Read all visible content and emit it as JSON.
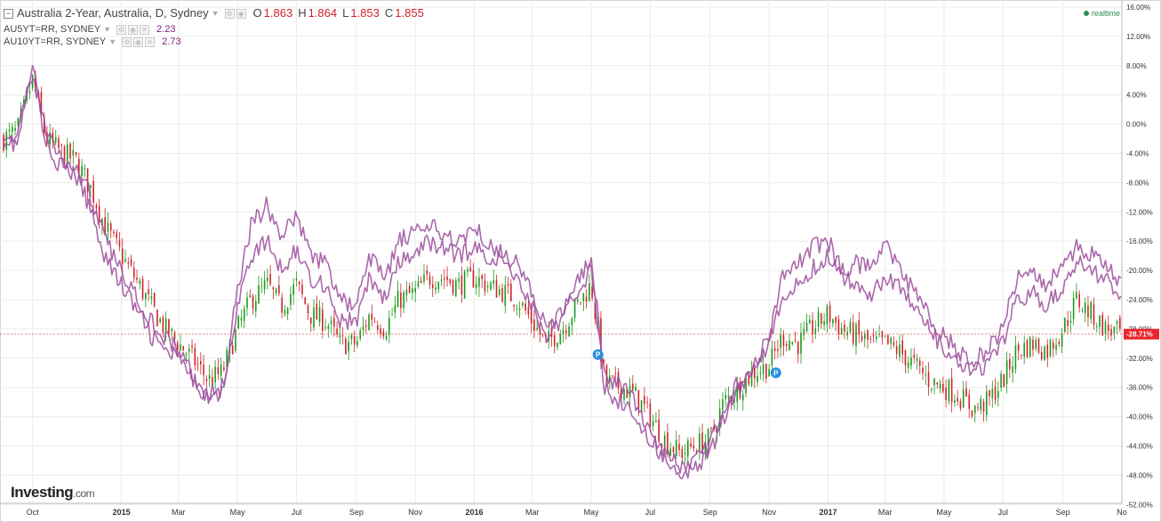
{
  "legend": {
    "main": {
      "title": "Australia 2-Year, Australia, D, Sydney",
      "o_label": "O",
      "o_value": "1.863",
      "h_label": "H",
      "h_value": "1.864",
      "l_label": "L",
      "l_value": "1.853",
      "c_label": "C",
      "c_value": "1.855"
    },
    "comparisons": [
      {
        "symbol": "AU5YT=RR, SYDNEY",
        "value": "2.23"
      },
      {
        "symbol": "AU10YT=RR, SYDNEY",
        "value": "2.73"
      }
    ]
  },
  "realtime_label": "realtime",
  "logo": {
    "brand": "Investing",
    "suffix": ".com"
  },
  "colors": {
    "up": "#1a9a1a",
    "down": "#d0232a",
    "compare_series": "#9c4f9c",
    "last_price_line": "#e05a5a",
    "last_price_badge": "#e8262b",
    "grid": "#ececec",
    "event_marker": "#2b8fdc"
  },
  "chart_data": {
    "type": "line",
    "title": "Australia 2-Year, Australia, D, Sydney",
    "xlabel": "",
    "ylabel": "",
    "y_unit": "%",
    "ylim": [
      -53,
      17
    ],
    "grid": true,
    "x_ticks": [
      "Oct",
      "2015",
      "Mar",
      "May",
      "Jul",
      "Sep",
      "Nov",
      "2016",
      "Mar",
      "May",
      "Jul",
      "Sep",
      "Nov",
      "2017",
      "Mar",
      "May",
      "Jul",
      "Sep",
      "No"
    ],
    "y_ticks": [
      16,
      12,
      8,
      4,
      0,
      -4,
      -8,
      -12,
      -16,
      -20,
      -24,
      -28,
      -32,
      -36,
      -40,
      -44,
      -48,
      -52
    ],
    "y_tick_labels": [
      "16.00%",
      "12.00%",
      "8.00%",
      "4.00%",
      "0.00%",
      "-4.00%",
      "-8.00%",
      "-12.00%",
      "-16.00%",
      "-20.00%",
      "-24.00%",
      "-28.00%",
      "-32.00%",
      "-36.00%",
      "-40.00%",
      "-44.00%",
      "-48.00%",
      "-52.00%"
    ],
    "last_value": -28.71,
    "last_value_label": "-28.71%",
    "event_markers": [
      {
        "date": "2016-05",
        "label": "P"
      },
      {
        "date": "2016-11",
        "label": "P"
      }
    ],
    "series": [
      {
        "name": "Australia 2-Year",
        "kind": "candlestick",
        "x": [
          "2014-09-01",
          "2014-09-15",
          "2014-10-01",
          "2014-10-15",
          "2014-11-01",
          "2014-11-15",
          "2014-12-01",
          "2014-12-15",
          "2015-01-01",
          "2015-01-15",
          "2015-02-01",
          "2015-02-15",
          "2015-03-01",
          "2015-03-15",
          "2015-04-01",
          "2015-04-15",
          "2015-05-01",
          "2015-05-15",
          "2015-06-01",
          "2015-06-15",
          "2015-07-01",
          "2015-07-15",
          "2015-08-01",
          "2015-08-15",
          "2015-09-01",
          "2015-09-15",
          "2015-10-01",
          "2015-10-15",
          "2015-11-01",
          "2015-11-15",
          "2015-12-01",
          "2015-12-15",
          "2016-01-01",
          "2016-01-15",
          "2016-02-01",
          "2016-02-15",
          "2016-03-01",
          "2016-03-15",
          "2016-04-01",
          "2016-04-15",
          "2016-05-01",
          "2016-05-15",
          "2016-06-01",
          "2016-06-15",
          "2016-07-01",
          "2016-07-15",
          "2016-08-01",
          "2016-08-15",
          "2016-09-01",
          "2016-09-15",
          "2016-10-01",
          "2016-10-15",
          "2016-11-01",
          "2016-11-15",
          "2016-12-01",
          "2016-12-15",
          "2017-01-01",
          "2017-01-15",
          "2017-02-01",
          "2017-02-15",
          "2017-03-01",
          "2017-03-15",
          "2017-04-01",
          "2017-04-15",
          "2017-05-01",
          "2017-05-15",
          "2017-06-01",
          "2017-06-15",
          "2017-07-01",
          "2017-07-15",
          "2017-08-01",
          "2017-08-15",
          "2017-09-01",
          "2017-09-15",
          "2017-10-01",
          "2017-10-15",
          "2017-11-01"
        ],
        "values": [
          -2,
          -1,
          6,
          -2,
          -4,
          -5,
          -9,
          -14,
          -18,
          -21,
          -25,
          -28,
          -30,
          -32,
          -35,
          -34,
          -28,
          -24,
          -22,
          -25,
          -22,
          -26,
          -27,
          -30,
          -30,
          -26,
          -28,
          -24,
          -23,
          -21,
          -21,
          -22,
          -21,
          -22,
          -23,
          -24,
          -27,
          -30,
          -28,
          -25,
          -22,
          -35,
          -36,
          -37,
          -40,
          -43,
          -45,
          -44,
          -43,
          -38,
          -36,
          -34,
          -33,
          -29,
          -30,
          -28,
          -26,
          -28,
          -29,
          -30,
          -30,
          -31,
          -33,
          -35,
          -36,
          -37,
          -39,
          -38,
          -35,
          -31,
          -30,
          -31,
          -28,
          -24,
          -26,
          -28,
          -28.71
        ]
      },
      {
        "name": "AU5YT=RR, SYDNEY",
        "kind": "line",
        "x": [
          "2014-09-01",
          "2014-09-15",
          "2014-10-01",
          "2014-10-15",
          "2014-11-01",
          "2014-11-15",
          "2014-12-01",
          "2014-12-15",
          "2015-01-01",
          "2015-01-15",
          "2015-02-01",
          "2015-02-15",
          "2015-03-01",
          "2015-03-15",
          "2015-04-01",
          "2015-04-15",
          "2015-05-01",
          "2015-05-15",
          "2015-06-01",
          "2015-06-15",
          "2015-07-01",
          "2015-07-15",
          "2015-08-01",
          "2015-08-15",
          "2015-09-01",
          "2015-09-15",
          "2015-10-01",
          "2015-10-15",
          "2015-11-01",
          "2015-11-15",
          "2015-12-01",
          "2015-12-15",
          "2016-01-01",
          "2016-01-15",
          "2016-02-01",
          "2016-02-15",
          "2016-03-01",
          "2016-03-15",
          "2016-04-01",
          "2016-04-15",
          "2016-05-01",
          "2016-05-15",
          "2016-06-01",
          "2016-06-15",
          "2016-07-01",
          "2016-07-15",
          "2016-08-01",
          "2016-08-15",
          "2016-09-01",
          "2016-09-15",
          "2016-10-01",
          "2016-10-15",
          "2016-11-01",
          "2016-11-15",
          "2016-12-01",
          "2016-12-15",
          "2017-01-01",
          "2017-01-15",
          "2017-02-01",
          "2017-02-15",
          "2017-03-01",
          "2017-03-15",
          "2017-04-01",
          "2017-04-15",
          "2017-05-01",
          "2017-05-15",
          "2017-06-01",
          "2017-06-15",
          "2017-07-01",
          "2017-07-15",
          "2017-08-01",
          "2017-08-15",
          "2017-09-01",
          "2017-09-15",
          "2017-10-01",
          "2017-10-15",
          "2017-11-01"
        ],
        "values": [
          -2,
          -3,
          8,
          -3,
          -6,
          -7,
          -12,
          -18,
          -22,
          -25,
          -29,
          -31,
          -32,
          -35,
          -37,
          -36,
          -25,
          -18,
          -16,
          -20,
          -17,
          -21,
          -22,
          -27,
          -27,
          -21,
          -24,
          -19,
          -18,
          -16,
          -17,
          -18,
          -17,
          -18,
          -19,
          -21,
          -25,
          -29,
          -27,
          -23,
          -20,
          -36,
          -38,
          -40,
          -43,
          -45,
          -47,
          -46,
          -44,
          -39,
          -35,
          -33,
          -30,
          -24,
          -22,
          -20,
          -18,
          -21,
          -22,
          -23,
          -21,
          -22,
          -25,
          -28,
          -31,
          -33,
          -34,
          -33,
          -30,
          -24,
          -23,
          -25,
          -22,
          -19,
          -20,
          -21,
          -24
        ]
      },
      {
        "name": "AU10YT=RR, SYDNEY",
        "kind": "line",
        "x": [
          "2014-09-01",
          "2014-09-15",
          "2014-10-01",
          "2014-10-15",
          "2014-11-01",
          "2014-11-15",
          "2014-12-01",
          "2014-12-15",
          "2015-01-01",
          "2015-01-15",
          "2015-02-01",
          "2015-02-15",
          "2015-03-01",
          "2015-03-15",
          "2015-04-01",
          "2015-04-15",
          "2015-05-01",
          "2015-05-15",
          "2015-06-01",
          "2015-06-15",
          "2015-07-01",
          "2015-07-15",
          "2015-08-01",
          "2015-08-15",
          "2015-09-01",
          "2015-09-15",
          "2015-10-01",
          "2015-10-15",
          "2015-11-01",
          "2015-11-15",
          "2015-12-01",
          "2015-12-15",
          "2016-01-01",
          "2016-01-15",
          "2016-02-01",
          "2016-02-15",
          "2016-03-01",
          "2016-03-15",
          "2016-04-01",
          "2016-04-15",
          "2016-05-01",
          "2016-05-15",
          "2016-06-01",
          "2016-06-15",
          "2016-07-01",
          "2016-07-15",
          "2016-08-01",
          "2016-08-15",
          "2016-09-01",
          "2016-09-15",
          "2016-10-01",
          "2016-10-15",
          "2016-11-01",
          "2016-11-15",
          "2016-12-01",
          "2016-12-15",
          "2017-01-01",
          "2017-01-15",
          "2017-02-01",
          "2017-02-15",
          "2017-03-01",
          "2017-03-15",
          "2017-04-01",
          "2017-04-15",
          "2017-05-01",
          "2017-05-15",
          "2017-06-01",
          "2017-06-15",
          "2017-07-01",
          "2017-07-15",
          "2017-08-01",
          "2017-08-15",
          "2017-09-01",
          "2017-09-15",
          "2017-10-01",
          "2017-10-15",
          "2017-11-01"
        ],
        "values": [
          -1,
          -2,
          7,
          -1,
          -5,
          -6,
          -10,
          -16,
          -20,
          -23,
          -27,
          -29,
          -31,
          -34,
          -38,
          -37,
          -23,
          -14,
          -11,
          -16,
          -12,
          -18,
          -19,
          -24,
          -25,
          -18,
          -21,
          -16,
          -15,
          -14,
          -15,
          -16,
          -14,
          -16,
          -18,
          -19,
          -23,
          -28,
          -26,
          -21,
          -19,
          -34,
          -36,
          -38,
          -42,
          -46,
          -48,
          -47,
          -45,
          -40,
          -36,
          -33,
          -29,
          -21,
          -19,
          -17,
          -16,
          -20,
          -19,
          -20,
          -16,
          -20,
          -23,
          -26,
          -29,
          -31,
          -32,
          -31,
          -28,
          -21,
          -20,
          -22,
          -19,
          -17,
          -18,
          -19,
          -22
        ]
      }
    ]
  }
}
